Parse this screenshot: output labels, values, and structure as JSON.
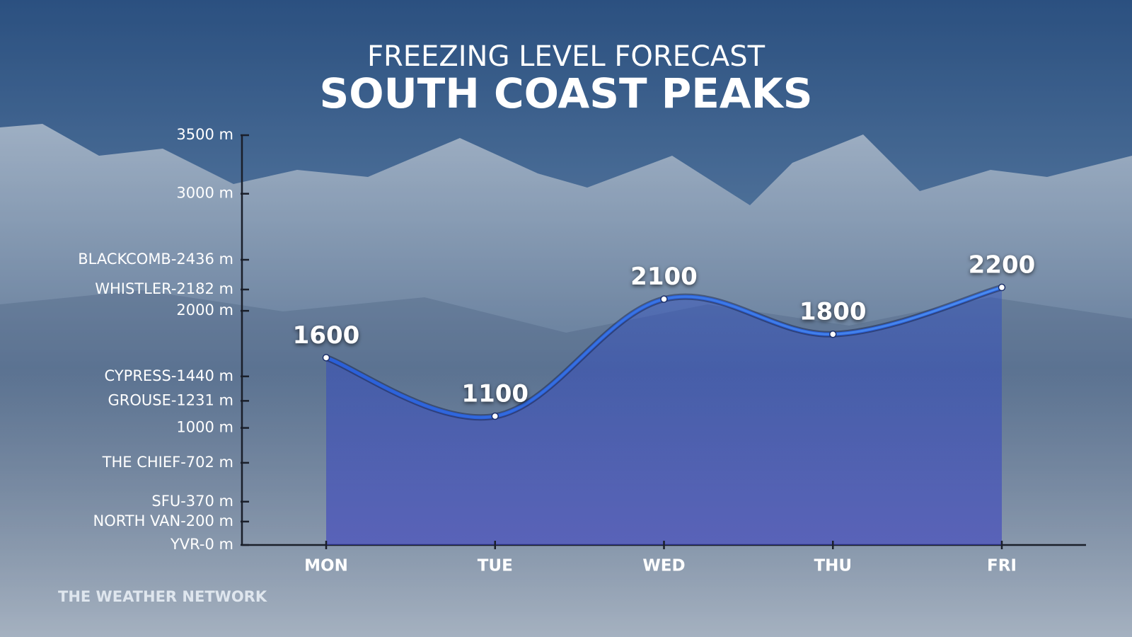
{
  "chart_data": {
    "type": "area",
    "title": "FREEZING LEVEL FORECAST",
    "subtitle": "SOUTH COAST PEAKS",
    "source": "THE WEATHER NETWORK",
    "categories": [
      "MON",
      "TUE",
      "WED",
      "THU",
      "FRI"
    ],
    "values": [
      1600,
      1100,
      2100,
      1800,
      2200
    ],
    "color": "#2a5fd8",
    "ylim": [
      0,
      3500
    ],
    "yticks": [
      {
        "value": 0,
        "label": "YVR-0 m"
      },
      {
        "value": 200,
        "label": "NORTH VAN-200 m"
      },
      {
        "value": 370,
        "label": "SFU-370 m"
      },
      {
        "value": 702,
        "label": "THE CHIEF-702 m"
      },
      {
        "value": 1000,
        "label": "1000 m"
      },
      {
        "value": 1231,
        "label": "GROUSE-1231 m"
      },
      {
        "value": 1440,
        "label": "CYPRESS-1440 m"
      },
      {
        "value": 2000,
        "label": "2000 m"
      },
      {
        "value": 2182,
        "label": "WHISTLER-2182 m"
      },
      {
        "value": 2436,
        "label": "BLACKCOMB-2436 m"
      },
      {
        "value": 3000,
        "label": "3000 m"
      },
      {
        "value": 3500,
        "label": "3500 m"
      }
    ],
    "grid": false
  }
}
